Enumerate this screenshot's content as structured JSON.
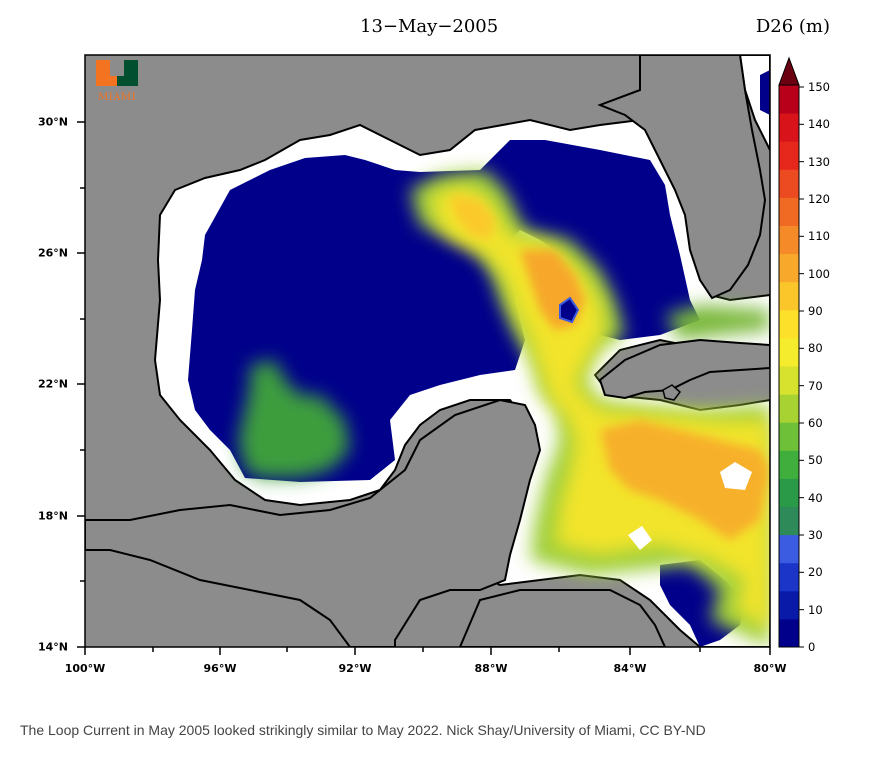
{
  "title": "13−May−2005",
  "units": "D26 (m)",
  "logo": {
    "icon": "university-of-miami-u-logo",
    "text": "MIAMI",
    "orange": "#f47321",
    "green": "#005030"
  },
  "x_ticks": [
    "100°W",
    "96°W",
    "92°W",
    "88°W",
    "84°W",
    "80°W"
  ],
  "y_ticks": [
    "30°N",
    "26°N",
    "22°N",
    "18°N",
    "14°N"
  ],
  "colorbar": {
    "ticks": [
      "150",
      "140",
      "130",
      "120",
      "110",
      "100",
      "90",
      "80",
      "70",
      "60",
      "50",
      "40",
      "30",
      "20",
      "10",
      "0"
    ],
    "range": [
      0,
      150
    ],
    "colors": [
      "#00008b",
      "#0a1aa8",
      "#1a35c8",
      "#3b5be0",
      "#2f8a5a",
      "#2a9a48",
      "#3fae3c",
      "#6dc038",
      "#a8d232",
      "#d6e22e",
      "#f4ec2c",
      "#fce02a",
      "#fbc62a",
      "#f8a82a",
      "#f58a28",
      "#f06a24",
      "#ec4a20",
      "#e6281c",
      "#d8141a",
      "#b8001a"
    ]
  },
  "map_colors": {
    "land": "#8c8c8c",
    "ocean_no_data": "#ffffff",
    "deep": "#00008b"
  },
  "caption": "The Loop Current in May 2005 looked strikingly similar to May 2022. Nick Shay/University of Miami, CC BY-ND"
}
